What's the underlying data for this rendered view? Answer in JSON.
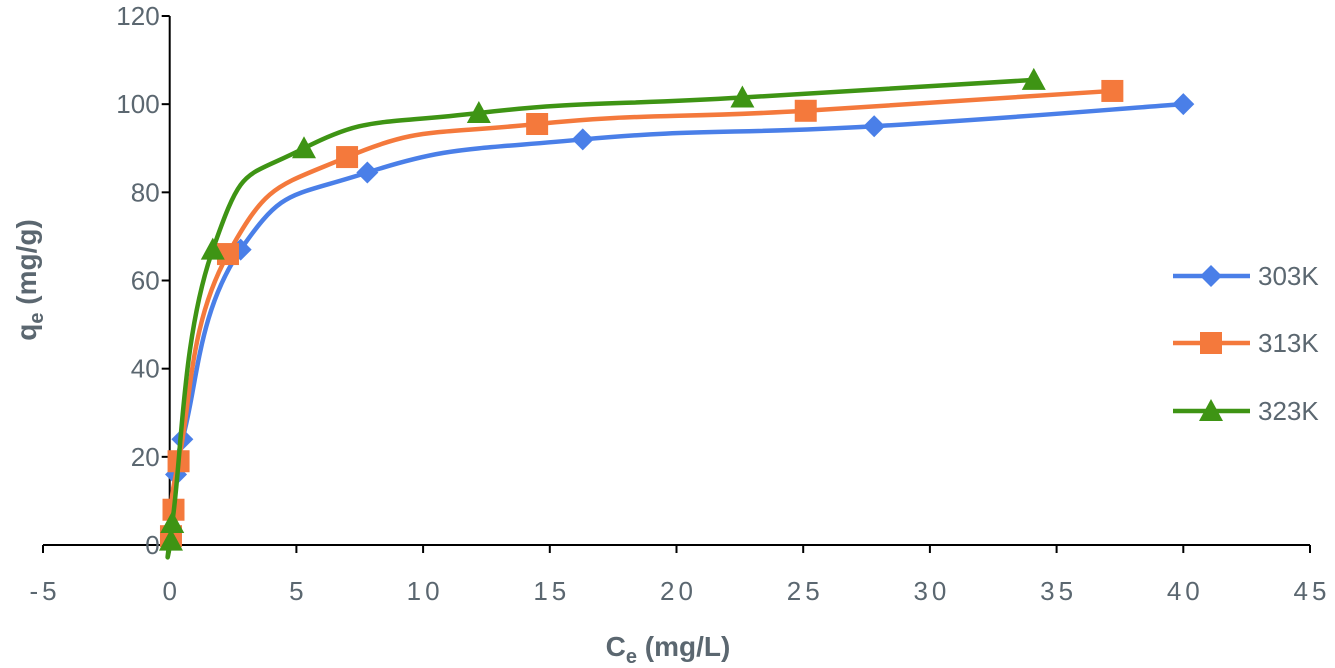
{
  "chart_data": {
    "type": "line",
    "title": "",
    "xlabel": {
      "main": "C",
      "sub": "e",
      "rest": " (mg/L)"
    },
    "ylabel": {
      "main": "q",
      "sub": "e",
      "rest": " (mg/g)"
    },
    "xlim": [
      -5,
      45
    ],
    "ylim": [
      0,
      120
    ],
    "xticks": [
      "-5",
      "0",
      "5",
      "10",
      "15",
      "20",
      "25",
      "30",
      "35",
      "40",
      "45"
    ],
    "yticks": [
      "0",
      "20",
      "40",
      "60",
      "80",
      "100",
      "120"
    ],
    "grid": false,
    "legend_position": "right",
    "series": [
      {
        "name": "303K",
        "color": "#4a7fe8",
        "marker": "diamond",
        "points": [
          [
            0.1,
            3
          ],
          [
            0.25,
            16
          ],
          [
            0.5,
            24
          ],
          [
            2.8,
            67
          ],
          [
            7.8,
            84.5
          ],
          [
            16.3,
            92
          ],
          [
            27.8,
            95
          ],
          [
            40.0,
            100
          ]
        ]
      },
      {
        "name": "313K",
        "color": "#f4793c",
        "marker": "square",
        "points": [
          [
            0.05,
            2
          ],
          [
            0.15,
            8
          ],
          [
            0.35,
            19
          ],
          [
            2.3,
            66
          ],
          [
            7.0,
            88
          ],
          [
            14.5,
            95.5
          ],
          [
            25.1,
            98.5
          ],
          [
            37.2,
            103
          ]
        ]
      },
      {
        "name": "323K",
        "color": "#3e9414",
        "marker": "triangle",
        "points": [
          [
            0.05,
            1
          ],
          [
            0.1,
            5
          ],
          [
            1.7,
            67
          ],
          [
            5.3,
            90
          ],
          [
            12.2,
            98
          ],
          [
            22.6,
            101.5
          ],
          [
            34.1,
            105.5
          ]
        ]
      }
    ]
  }
}
